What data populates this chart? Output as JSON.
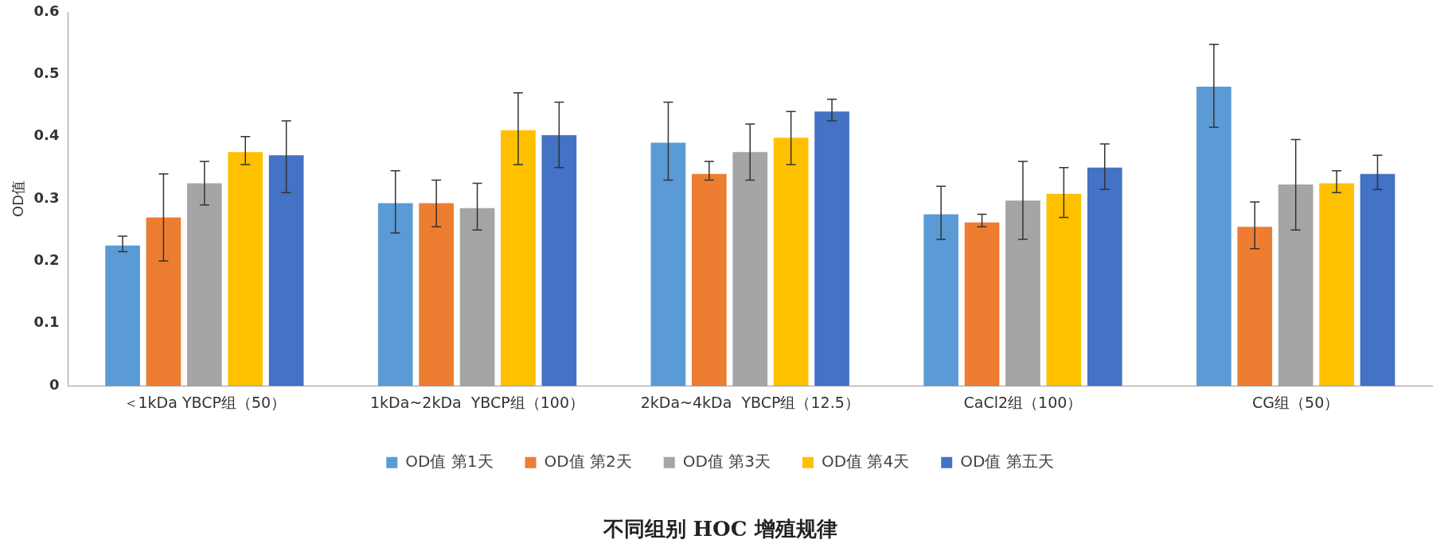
{
  "chart_data": {
    "type": "bar",
    "title": "不同组别 HOC 增殖规律",
    "ylabel": "OD值",
    "categories": [
      "＜1kDa YBCP组（50）",
      "1kDa~2kDa  YBCP组（100）",
      "2kDa~4kDa  YBCP组（12.5）",
      "CaCl2组（100）",
      "CG组（50）"
    ],
    "ylim": [
      0,
      0.6
    ],
    "yticks": [
      0,
      0.1,
      0.2,
      0.3,
      0.4,
      0.5,
      0.6
    ],
    "grid": false,
    "legend": "bottom",
    "series": [
      {
        "name": "OD值 第1天",
        "color": "#5b9bd5",
        "values": [
          0.225,
          0.293,
          0.39,
          0.275,
          0.48
        ],
        "errors": [
          [
            0.215,
            0.24
          ],
          [
            0.245,
            0.345
          ],
          [
            0.33,
            0.455
          ],
          [
            0.235,
            0.32
          ],
          [
            0.415,
            0.548
          ]
        ]
      },
      {
        "name": "OD值 第2天",
        "color": "#ed7d31",
        "values": [
          0.27,
          0.293,
          0.34,
          0.262,
          0.255
        ],
        "errors": [
          [
            0.2,
            0.34
          ],
          [
            0.255,
            0.33
          ],
          [
            0.33,
            0.36
          ],
          [
            0.255,
            0.275
          ],
          [
            0.22,
            0.295
          ]
        ]
      },
      {
        "name": "OD值 第3天",
        "color": "#a5a5a5",
        "values": [
          0.325,
          0.285,
          0.375,
          0.297,
          0.323
        ],
        "errors": [
          [
            0.29,
            0.36
          ],
          [
            0.25,
            0.325
          ],
          [
            0.33,
            0.42
          ],
          [
            0.235,
            0.36
          ],
          [
            0.25,
            0.395
          ]
        ]
      },
      {
        "name": "OD值 第4天",
        "color": "#ffc000",
        "values": [
          0.375,
          0.41,
          0.398,
          0.308,
          0.325
        ],
        "errors": [
          [
            0.355,
            0.4
          ],
          [
            0.355,
            0.47
          ],
          [
            0.355,
            0.44
          ],
          [
            0.27,
            0.35
          ],
          [
            0.31,
            0.345
          ]
        ]
      },
      {
        "name": "OD值 第五天",
        "color": "#4472c4",
        "values": [
          0.37,
          0.402,
          0.44,
          0.35,
          0.34
        ],
        "errors": [
          [
            0.31,
            0.425
          ],
          [
            0.35,
            0.455
          ],
          [
            0.425,
            0.46
          ],
          [
            0.315,
            0.388
          ],
          [
            0.315,
            0.37
          ]
        ]
      }
    ]
  }
}
